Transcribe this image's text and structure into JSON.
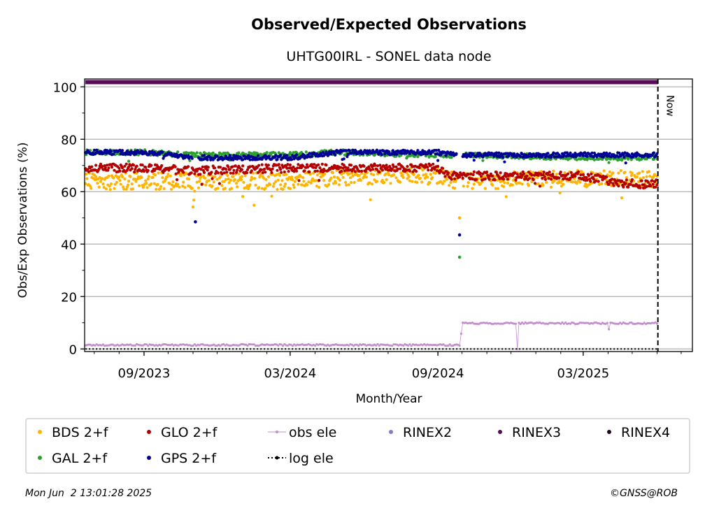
{
  "chart_data": {
    "type": "scatter",
    "title": "Observed/Expected Observations",
    "subtitle": "UHTG00IRL - SONEL data node",
    "xlabel": "Month/Year",
    "ylabel": "Obs/Exp Observations (%)",
    "x_range": [
      "2023-06-19",
      "2025-07-15"
    ],
    "ylim": [
      -1,
      103
    ],
    "x_ticks": [
      {
        "date": "2023-09-01",
        "label": "09/2023"
      },
      {
        "date": "2024-03-01",
        "label": "03/2024"
      },
      {
        "date": "2024-09-01",
        "label": "09/2024"
      },
      {
        "date": "2025-03-01",
        "label": "03/2025"
      }
    ],
    "y_ticks": [
      0,
      20,
      40,
      60,
      80,
      100
    ],
    "grid": "horizontal",
    "now": {
      "date": "2025-06-02",
      "label": "Now"
    },
    "series": [
      {
        "name": "BDS 2+f",
        "color": "#ffb400",
        "marker": "dot",
        "points": [
          [
            "2023-06-20",
            64
          ],
          [
            "2023-09-01",
            64
          ],
          [
            "2023-10-28",
            64
          ],
          [
            "2023-11-01",
            57
          ],
          [
            "2023-11-04",
            64
          ],
          [
            "2024-03-01",
            64
          ],
          [
            "2024-06-01",
            66
          ],
          [
            "2024-09-01",
            66
          ],
          [
            "2024-09-25",
            64
          ],
          [
            "2024-09-28",
            50
          ],
          [
            "2024-10-01",
            64
          ],
          [
            "2025-03-01",
            65
          ],
          [
            "2025-06-01",
            65
          ]
        ]
      },
      {
        "name": "GAL 2+f",
        "color": "#2ca02c",
        "marker": "dot",
        "points": [
          [
            "2023-06-20",
            75
          ],
          [
            "2023-09-01",
            75
          ],
          [
            "2023-11-01",
            74
          ],
          [
            "2024-03-01",
            74
          ],
          [
            "2024-05-01",
            75
          ],
          [
            "2024-09-01",
            74
          ],
          [
            "2024-09-25",
            74
          ],
          [
            "2024-09-28",
            35
          ],
          [
            "2024-10-01",
            74
          ],
          [
            "2025-03-01",
            73
          ],
          [
            "2025-06-01",
            73
          ]
        ]
      },
      {
        "name": "GLO 2+f",
        "color": "#b40000",
        "marker": "dot",
        "points": [
          [
            "2023-06-20",
            69
          ],
          [
            "2023-09-01",
            69
          ],
          [
            "2023-11-01",
            68
          ],
          [
            "2024-03-01",
            69
          ],
          [
            "2024-09-01",
            69
          ],
          [
            "2024-09-15",
            66
          ],
          [
            "2025-03-01",
            66
          ],
          [
            "2025-04-20",
            63
          ],
          [
            "2025-06-01",
            63
          ]
        ]
      },
      {
        "name": "GPS 2+f",
        "color": "#000096",
        "marker": "dot",
        "points": [
          [
            "2023-06-20",
            75
          ],
          [
            "2023-09-01",
            75
          ],
          [
            "2023-11-01",
            73
          ],
          [
            "2023-11-04",
            48.5
          ],
          [
            "2023-11-07",
            73
          ],
          [
            "2024-03-01",
            73
          ],
          [
            "2024-05-01",
            75
          ],
          [
            "2024-09-01",
            75
          ],
          [
            "2024-09-25",
            74
          ],
          [
            "2024-09-28",
            43.5
          ],
          [
            "2024-10-01",
            74
          ],
          [
            "2025-03-01",
            74
          ],
          [
            "2025-06-01",
            74
          ]
        ]
      },
      {
        "name": "obs ele",
        "color": "#c38fcc",
        "marker": "line-dot",
        "points": [
          [
            "2023-06-20",
            1.5
          ],
          [
            "2024-09-29",
            1.5
          ],
          [
            "2024-10-01",
            9.8
          ],
          [
            "2025-06-01",
            9.8
          ]
        ]
      },
      {
        "name": "log ele",
        "color": "#000000",
        "marker": "dotted-line",
        "points": [
          [
            "2023-06-20",
            0
          ],
          [
            "2025-06-02",
            0
          ]
        ]
      },
      {
        "name": "RINEX2",
        "color": "#8c78c8",
        "marker": "dot",
        "points": []
      },
      {
        "name": "RINEX3",
        "color": "#5a0a5a",
        "marker": "dot",
        "points": [
          [
            "2023-06-20",
            101.8
          ],
          [
            "2025-06-02",
            101.8
          ]
        ]
      },
      {
        "name": "RINEX4",
        "color": "#1e0a1e",
        "marker": "dot",
        "points": []
      }
    ]
  },
  "footer": {
    "timestamp": "Mon Jun  2 13:01:28 2025",
    "credit": "©GNSS@ROB"
  }
}
